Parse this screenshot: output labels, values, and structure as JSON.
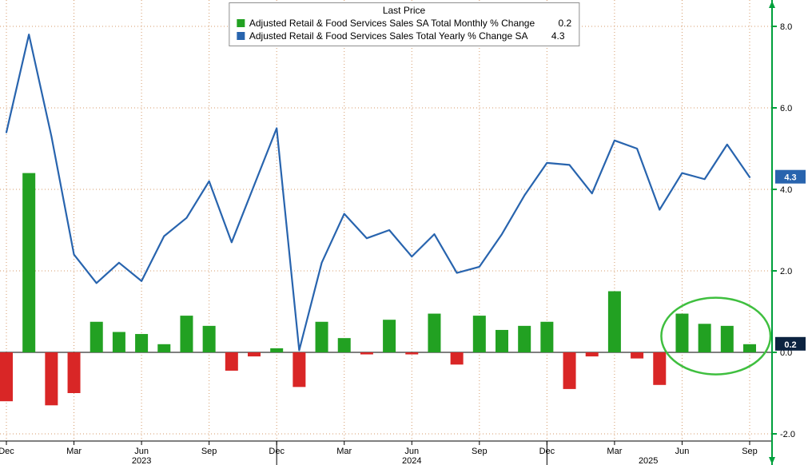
{
  "legend": {
    "title": "Last Price",
    "items": [
      {
        "label": "Adjusted Retail & Food Services Sales SA Total Monthly % Change",
        "value": "0.2",
        "color": "#22a122"
      },
      {
        "label": "Adjusted Retail & Food Services Sales Total Yearly % Change SA",
        "value": "4.3",
        "color": "#2864ae"
      }
    ]
  },
  "right_axis": {
    "tick_labels": [
      "8.0",
      "6.0",
      "4.0",
      "2.0",
      "0.0",
      "-2.0"
    ],
    "tick_values": [
      8,
      6,
      4,
      2,
      0,
      -2
    ],
    "price_labels": [
      {
        "text": "4.3",
        "value": 4.3,
        "bg": "#2864ae"
      },
      {
        "text": "0.2",
        "value": 0.2,
        "bg": "#0c2340"
      }
    ]
  },
  "x_axis": {
    "quarter_ticks": [
      "Dec",
      "Mar",
      "Jun",
      "Sep",
      "Dec",
      "Mar",
      "Jun",
      "Sep",
      "Dec",
      "Mar",
      "Jun",
      "Sep"
    ],
    "year_labels": [
      "2023",
      "2024",
      "2025"
    ]
  },
  "colors": {
    "grid": "#d49a6a",
    "axis_green": "#00a03c",
    "zero_line": "#000000",
    "bar_positive": "#22a122",
    "bar_negative": "#d92626",
    "line_blue": "#2864ae",
    "ellipse_green": "#3fbf3f",
    "background": "#ffffff"
  },
  "chart_data": {
    "type": "mixed",
    "title": "Last Price",
    "x": [
      "2022-12",
      "2023-01",
      "2023-02",
      "2023-03",
      "2023-04",
      "2023-05",
      "2023-06",
      "2023-07",
      "2023-08",
      "2023-09",
      "2023-10",
      "2023-11",
      "2023-12",
      "2024-01",
      "2024-02",
      "2024-03",
      "2024-04",
      "2024-05",
      "2024-06",
      "2024-07",
      "2024-08",
      "2024-09",
      "2024-10",
      "2024-11",
      "2024-12",
      "2025-01",
      "2025-02",
      "2025-03",
      "2025-04",
      "2025-05",
      "2025-06",
      "2025-07",
      "2025-08",
      "2025-09"
    ],
    "series": [
      {
        "name": "Adjusted Retail & Food Services Sales SA Total Monthly % Change",
        "type": "bar",
        "last_value": 0.2,
        "color_positive": "#22a122",
        "color_negative": "#d92626",
        "values": [
          -1.2,
          4.4,
          -1.3,
          -1.0,
          0.75,
          0.5,
          0.45,
          0.2,
          0.9,
          0.65,
          -0.45,
          -0.1,
          0.1,
          -0.85,
          0.75,
          0.35,
          -0.05,
          0.8,
          -0.05,
          0.95,
          -0.3,
          0.9,
          0.55,
          0.65,
          0.75,
          -0.9,
          -0.1,
          1.5,
          -0.15,
          -0.8,
          0.95,
          0.7,
          0.65,
          0.2
        ]
      },
      {
        "name": "Adjusted Retail & Food Services Sales Total Yearly % Change SA",
        "type": "line",
        "last_value": 4.3,
        "color": "#2864ae",
        "values": [
          5.4,
          7.8,
          5.3,
          2.4,
          1.7,
          2.2,
          1.75,
          2.85,
          3.3,
          4.2,
          2.7,
          4.1,
          5.5,
          0.05,
          2.2,
          3.4,
          2.8,
          3.0,
          2.35,
          2.9,
          1.95,
          2.1,
          2.9,
          3.85,
          4.65,
          4.6,
          3.9,
          5.2,
          5.0,
          3.5,
          4.4,
          4.25,
          5.1,
          4.3
        ]
      }
    ],
    "y_ticks": [
      8,
      6,
      4,
      2,
      0,
      -2
    ],
    "ylim": [
      -2.2,
      8.65
    ],
    "grid": "dotted",
    "legend_position": "top-center",
    "annotation": {
      "type": "ellipse",
      "label": "highlight-last-4-months",
      "color": "#3fbf3f",
      "month_range": [
        "2025-06",
        "2025-09"
      ],
      "start_index": 30,
      "end_index": 33,
      "center_value": 0.4
    }
  }
}
